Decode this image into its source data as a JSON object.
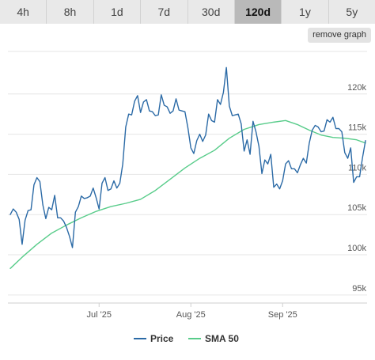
{
  "tabs": [
    {
      "label": "4h",
      "active": false
    },
    {
      "label": "8h",
      "active": false
    },
    {
      "label": "1d",
      "active": false
    },
    {
      "label": "7d",
      "active": false
    },
    {
      "label": "30d",
      "active": false
    },
    {
      "label": "120d",
      "active": true
    },
    {
      "label": "1y",
      "active": false
    },
    {
      "label": "5y",
      "active": false
    }
  ],
  "remove_graph_label": "remove graph",
  "chart_data": {
    "type": "line",
    "title": "",
    "xlabel": "",
    "ylabel": "",
    "ylim": [
      94000,
      125000
    ],
    "y_ticks": [
      {
        "value": 95000,
        "label": "95k"
      },
      {
        "value": 100000,
        "label": "100k"
      },
      {
        "value": 105000,
        "label": "105k"
      },
      {
        "value": 110000,
        "label": "110k"
      },
      {
        "value": 115000,
        "label": "115k"
      },
      {
        "value": 120000,
        "label": "120k"
      }
    ],
    "x_range": [
      "2025-06-01",
      "2025-09-29"
    ],
    "x_ticks": [
      {
        "date": "2025-07-01",
        "label": "Jul '25"
      },
      {
        "date": "2025-08-01",
        "label": "Aug '25"
      },
      {
        "date": "2025-09-01",
        "label": "Sep '25"
      }
    ],
    "grid": true,
    "legend_position": "bottom",
    "series": [
      {
        "name": "Price",
        "color": "#2b6aa6",
        "points": [
          [
            "2025-06-01",
            105000
          ],
          [
            "2025-06-02",
            105700
          ],
          [
            "2025-06-03",
            105300
          ],
          [
            "2025-06-04",
            104400
          ],
          [
            "2025-06-05",
            101300
          ],
          [
            "2025-06-06",
            104300
          ],
          [
            "2025-06-07",
            105500
          ],
          [
            "2025-06-08",
            105600
          ],
          [
            "2025-06-09",
            108700
          ],
          [
            "2025-06-10",
            109600
          ],
          [
            "2025-06-11",
            109100
          ],
          [
            "2025-06-12",
            106200
          ],
          [
            "2025-06-13",
            104500
          ],
          [
            "2025-06-14",
            105900
          ],
          [
            "2025-06-15",
            105600
          ],
          [
            "2025-06-16",
            107400
          ],
          [
            "2025-06-17",
            104600
          ],
          [
            "2025-06-18",
            104600
          ],
          [
            "2025-06-19",
            104200
          ],
          [
            "2025-06-20",
            103400
          ],
          [
            "2025-06-21",
            102300
          ],
          [
            "2025-06-22",
            100900
          ],
          [
            "2025-06-23",
            105300
          ],
          [
            "2025-06-24",
            106000
          ],
          [
            "2025-06-25",
            107300
          ],
          [
            "2025-06-26",
            107000
          ],
          [
            "2025-06-27",
            107100
          ],
          [
            "2025-06-28",
            107300
          ],
          [
            "2025-06-29",
            108300
          ],
          [
            "2025-06-30",
            107100
          ],
          [
            "2025-07-01",
            105700
          ],
          [
            "2025-07-02",
            108900
          ],
          [
            "2025-07-03",
            109600
          ],
          [
            "2025-07-04",
            108000
          ],
          [
            "2025-07-05",
            108200
          ],
          [
            "2025-07-06",
            109200
          ],
          [
            "2025-07-07",
            108300
          ],
          [
            "2025-07-08",
            108900
          ],
          [
            "2025-07-09",
            111300
          ],
          [
            "2025-07-10",
            115900
          ],
          [
            "2025-07-11",
            117500
          ],
          [
            "2025-07-12",
            117400
          ],
          [
            "2025-07-13",
            119100
          ],
          [
            "2025-07-14",
            119800
          ],
          [
            "2025-07-15",
            117700
          ],
          [
            "2025-07-16",
            119000
          ],
          [
            "2025-07-17",
            119300
          ],
          [
            "2025-07-18",
            117900
          ],
          [
            "2025-07-19",
            117800
          ],
          [
            "2025-07-20",
            117300
          ],
          [
            "2025-07-21",
            117400
          ],
          [
            "2025-07-22",
            119900
          ],
          [
            "2025-07-23",
            118600
          ],
          [
            "2025-07-24",
            118400
          ],
          [
            "2025-07-25",
            117600
          ],
          [
            "2025-07-26",
            117900
          ],
          [
            "2025-07-27",
            119400
          ],
          [
            "2025-07-28",
            118000
          ],
          [
            "2025-07-29",
            117900
          ],
          [
            "2025-07-30",
            117800
          ],
          [
            "2025-07-31",
            115800
          ],
          [
            "2025-08-01",
            113300
          ],
          [
            "2025-08-02",
            112600
          ],
          [
            "2025-08-03",
            114200
          ],
          [
            "2025-08-04",
            115000
          ],
          [
            "2025-08-05",
            114100
          ],
          [
            "2025-08-06",
            114900
          ],
          [
            "2025-08-07",
            117500
          ],
          [
            "2025-08-08",
            116700
          ],
          [
            "2025-08-09",
            116500
          ],
          [
            "2025-08-10",
            119300
          ],
          [
            "2025-08-11",
            118700
          ],
          [
            "2025-08-12",
            120200
          ],
          [
            "2025-08-13",
            123300
          ],
          [
            "2025-08-14",
            118500
          ],
          [
            "2025-08-15",
            117300
          ],
          [
            "2025-08-16",
            117400
          ],
          [
            "2025-08-17",
            117500
          ],
          [
            "2025-08-18",
            116300
          ],
          [
            "2025-08-19",
            112900
          ],
          [
            "2025-08-20",
            114300
          ],
          [
            "2025-08-21",
            112500
          ],
          [
            "2025-08-22",
            116600
          ],
          [
            "2025-08-23",
            115300
          ],
          [
            "2025-08-24",
            113500
          ],
          [
            "2025-08-25",
            110100
          ],
          [
            "2025-08-26",
            111800
          ],
          [
            "2025-08-27",
            111300
          ],
          [
            "2025-08-28",
            112500
          ],
          [
            "2025-08-29",
            108400
          ],
          [
            "2025-08-30",
            108800
          ],
          [
            "2025-08-31",
            108200
          ],
          [
            "2025-09-01",
            109200
          ],
          [
            "2025-09-02",
            111300
          ],
          [
            "2025-09-03",
            111700
          ],
          [
            "2025-09-04",
            110700
          ],
          [
            "2025-09-05",
            110700
          ],
          [
            "2025-09-06",
            110200
          ],
          [
            "2025-09-07",
            111200
          ],
          [
            "2025-09-08",
            112000
          ],
          [
            "2025-09-09",
            111400
          ],
          [
            "2025-09-10",
            113900
          ],
          [
            "2025-09-11",
            115500
          ],
          [
            "2025-09-12",
            116100
          ],
          [
            "2025-09-13",
            115900
          ],
          [
            "2025-09-14",
            115300
          ],
          [
            "2025-09-15",
            115400
          ],
          [
            "2025-09-16",
            116800
          ],
          [
            "2025-09-17",
            116500
          ],
          [
            "2025-09-18",
            117100
          ],
          [
            "2025-09-19",
            115700
          ],
          [
            "2025-09-20",
            115700
          ],
          [
            "2025-09-21",
            115300
          ],
          [
            "2025-09-22",
            112700
          ],
          [
            "2025-09-23",
            112000
          ],
          [
            "2025-09-24",
            113300
          ],
          [
            "2025-09-25",
            109000
          ],
          [
            "2025-09-26",
            109700
          ],
          [
            "2025-09-27",
            109700
          ],
          [
            "2025-09-28",
            112100
          ],
          [
            "2025-09-29",
            114200
          ]
        ]
      },
      {
        "name": "SMA 50",
        "color": "#58cc8a",
        "points": [
          [
            "2025-06-01",
            98300
          ],
          [
            "2025-06-05",
            99700
          ],
          [
            "2025-06-10",
            101300
          ],
          [
            "2025-06-15",
            102700
          ],
          [
            "2025-06-20",
            103700
          ],
          [
            "2025-06-25",
            104600
          ],
          [
            "2025-06-30",
            105400
          ],
          [
            "2025-07-05",
            106000
          ],
          [
            "2025-07-10",
            106400
          ],
          [
            "2025-07-15",
            106900
          ],
          [
            "2025-07-20",
            108000
          ],
          [
            "2025-07-25",
            109400
          ],
          [
            "2025-07-30",
            110800
          ],
          [
            "2025-08-04",
            112000
          ],
          [
            "2025-08-09",
            113000
          ],
          [
            "2025-08-14",
            114500
          ],
          [
            "2025-08-19",
            115600
          ],
          [
            "2025-08-24",
            116200
          ],
          [
            "2025-08-29",
            116500
          ],
          [
            "2025-09-02",
            116700
          ],
          [
            "2025-09-06",
            116200
          ],
          [
            "2025-09-10",
            115500
          ],
          [
            "2025-09-14",
            114900
          ],
          [
            "2025-09-18",
            114600
          ],
          [
            "2025-09-22",
            114500
          ],
          [
            "2025-09-26",
            114300
          ],
          [
            "2025-09-29",
            113900
          ]
        ]
      }
    ]
  }
}
